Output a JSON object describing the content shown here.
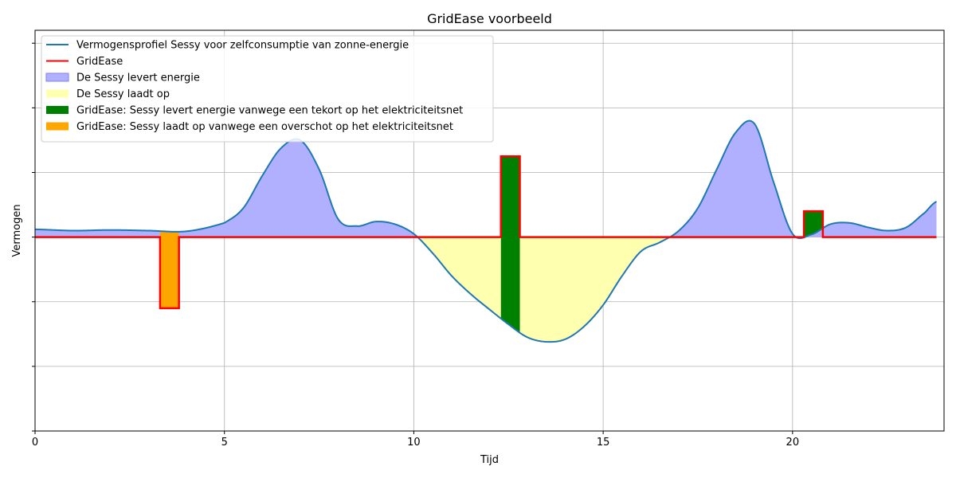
{
  "chart_data": {
    "type": "area",
    "title": "GridEase voorbeeld",
    "xlabel": "Tijd",
    "ylabel": "Vermogen",
    "xlim": [
      0,
      24
    ],
    "ylim": [
      -3,
      3.2
    ],
    "x_ticks": [
      0,
      5,
      10,
      15,
      20
    ],
    "y_ticks": [
      -3,
      -2,
      -1,
      0,
      1,
      2,
      3
    ],
    "y_tick_labels_shown": false,
    "grid": true,
    "legend_position": "upper-left",
    "colors": {
      "profile_line": "#1f77b4",
      "gridease_line": "#ff0000",
      "discharge_fill": "#b0b0ff",
      "charge_fill": "#ffffb0",
      "gridease_discharge": "#008000",
      "gridease_charge": "#ffa500"
    },
    "legend": [
      {
        "label": "Vermogensprofiel Sessy voor zelfconsumptie van zonne-energie",
        "kind": "line",
        "color": "#1f77b4"
      },
      {
        "label": "GridEase",
        "kind": "line",
        "color": "#ff0000"
      },
      {
        "label": "De Sessy levert energie",
        "kind": "patch",
        "color": "#b0b0ff"
      },
      {
        "label": "De Sessy laadt op",
        "kind": "patch",
        "color": "#ffffb0"
      },
      {
        "label": "GridEase: Sessy levert energie vanwege een tekort op het elektriciteitsnet",
        "kind": "patch",
        "color": "#008000"
      },
      {
        "label": "GridEase: Sessy laadt op vanwege een overschot op het elektriciteitsnet",
        "kind": "patch",
        "color": "#ffa500"
      }
    ],
    "series": [
      {
        "name": "Vermogensprofiel Sessy voor zelfconsumptie van zonne-energie",
        "x": [
          0,
          1,
          2,
          3,
          4,
          5,
          5.5,
          6,
          6.5,
          7,
          7.5,
          8,
          8.5,
          9,
          9.5,
          10,
          10.5,
          11,
          11.5,
          12,
          12.5,
          13,
          13.5,
          14,
          14.5,
          15,
          15.5,
          16,
          16.5,
          17,
          17.5,
          18,
          18.5,
          19,
          19.5,
          20,
          20.5,
          21,
          21.5,
          22,
          22.5,
          23,
          23.5,
          23.8
        ],
        "y": [
          0.12,
          0.1,
          0.11,
          0.1,
          0.09,
          0.22,
          0.45,
          0.95,
          1.38,
          1.5,
          1.05,
          0.28,
          0.17,
          0.24,
          0.2,
          0.05,
          -0.25,
          -0.6,
          -0.88,
          -1.12,
          -1.35,
          -1.55,
          -1.62,
          -1.58,
          -1.38,
          -1.05,
          -0.6,
          -0.22,
          -0.08,
          0.1,
          0.45,
          1.05,
          1.62,
          1.75,
          0.85,
          0.05,
          0.04,
          0.2,
          0.22,
          0.15,
          0.1,
          0.15,
          0.38,
          0.55
        ]
      },
      {
        "name": "GridEase",
        "pulses": [
          {
            "x_start": 3.3,
            "x_end": 3.8,
            "value": -1.1,
            "kind": "charge"
          },
          {
            "x_start": 12.3,
            "x_end": 12.8,
            "value": 1.25,
            "kind": "discharge"
          },
          {
            "x_start": 20.3,
            "x_end": 20.8,
            "value": 0.4,
            "kind": "discharge"
          }
        ]
      }
    ]
  }
}
